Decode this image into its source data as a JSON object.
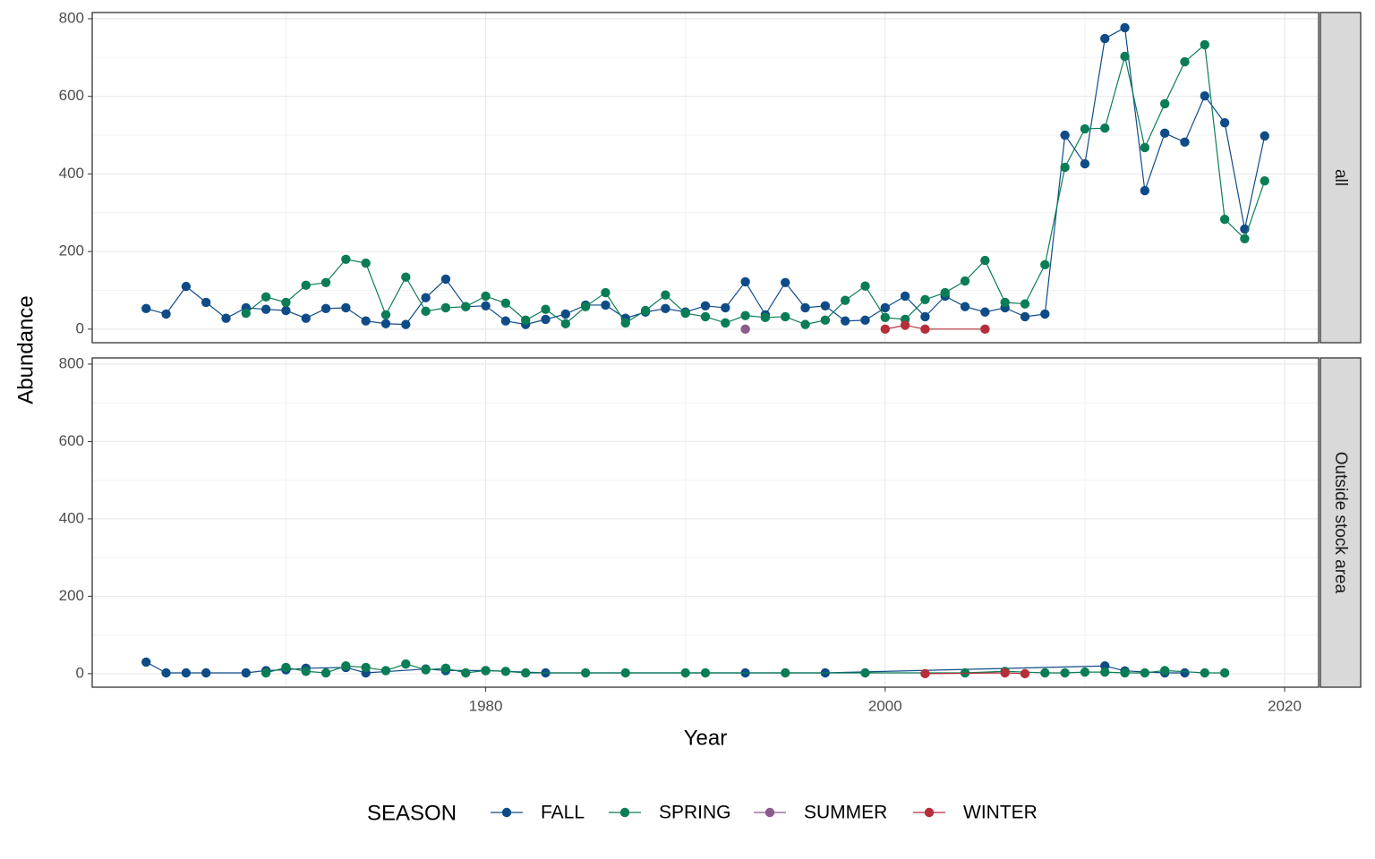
{
  "x_label": "Year",
  "y_label": "Abundance",
  "legend": {
    "title": "SEASON",
    "position": "bottom"
  },
  "chart_data": [
    {
      "type": "line",
      "facet": "all",
      "xlim": [
        1960.3,
        2021.7
      ],
      "ylim": [
        -35,
        816
      ],
      "xticks": [
        1980,
        2000,
        2020
      ],
      "yticks": [
        0,
        200,
        400,
        600,
        800
      ],
      "grid": true,
      "series": [
        {
          "name": "FALL",
          "color": "#0f4c87",
          "x": [
            1963,
            1964,
            1965,
            1966,
            1967,
            1968,
            1969,
            1970,
            1971,
            1972,
            1973,
            1974,
            1975,
            1976,
            1977,
            1978,
            1979,
            1980,
            1981,
            1982,
            1983,
            1984,
            1985,
            1986,
            1987,
            1988,
            1989,
            1990,
            1991,
            1992,
            1993,
            1994,
            1995,
            1996,
            1997,
            1998,
            1999,
            2000,
            2001,
            2002,
            2003,
            2004,
            2005,
            2006,
            2007,
            2008,
            2009,
            2010,
            2011,
            2012,
            2013,
            2014,
            2015,
            2016,
            2017,
            2018,
            2019
          ],
          "values": [
            53,
            39,
            110,
            69,
            28,
            55,
            51,
            48,
            28,
            53,
            55,
            21,
            14,
            12,
            81,
            129,
            58,
            60,
            21,
            12,
            25,
            39,
            62,
            62,
            28,
            44,
            53,
            44,
            60,
            55,
            122,
            37,
            120,
            55,
            60,
            21,
            23,
            55,
            85,
            32,
            85,
            58,
            44,
            55,
            32,
            39,
            500,
            426,
            749,
            777,
            357,
            505,
            482,
            601,
            532,
            258,
            498
          ]
        },
        {
          "name": "SPRING",
          "color": "#0b7d55",
          "x": [
            1968,
            1969,
            1970,
            1971,
            1972,
            1973,
            1974,
            1975,
            1976,
            1977,
            1978,
            1979,
            1980,
            1981,
            1982,
            1983,
            1984,
            1985,
            1986,
            1987,
            1988,
            1989,
            1990,
            1991,
            1992,
            1993,
            1994,
            1995,
            1996,
            1997,
            1998,
            1999,
            2000,
            2001,
            2002,
            2003,
            2004,
            2005,
            2006,
            2007,
            2008,
            2009,
            2010,
            2011,
            2012,
            2013,
            2014,
            2015,
            2016,
            2017,
            2018,
            2019
          ],
          "values": [
            41,
            83,
            69,
            113,
            120,
            180,
            170,
            37,
            134,
            46,
            55,
            58,
            85,
            67,
            23,
            51,
            14,
            58,
            94,
            16,
            48,
            88,
            41,
            32,
            16,
            35,
            30,
            32,
            12,
            23,
            74,
            111,
            30,
            25,
            76,
            94,
            124,
            177,
            69,
            65,
            166,
            417,
            516,
            518,
            703,
            468,
            581,
            689,
            733,
            283,
            233,
            382
          ]
        },
        {
          "name": "SUMMER",
          "color": "#8b5b8c",
          "x": [
            1993
          ],
          "values": [
            0
          ]
        },
        {
          "name": "WINTER",
          "color": "#b52f3a",
          "x": [
            2000,
            2001,
            2002,
            2005
          ],
          "values": [
            0,
            10,
            0,
            0
          ]
        }
      ]
    },
    {
      "type": "line",
      "facet": "Outside stock area",
      "xlim": [
        1960.3,
        2021.7
      ],
      "ylim": [
        -35,
        816
      ],
      "xticks": [
        1980,
        2000,
        2020
      ],
      "yticks": [
        0,
        200,
        400,
        600,
        800
      ],
      "grid": true,
      "series": [
        {
          "name": "FALL",
          "color": "#0f4c87",
          "x": [
            1963,
            1964,
            1965,
            1966,
            1968,
            1969,
            1970,
            1971,
            1973,
            1974,
            1977,
            1978,
            1980,
            1983,
            1993,
            1997,
            2011,
            2012,
            2014,
            2015
          ],
          "values": [
            30,
            2,
            2,
            2,
            2,
            8,
            10,
            14,
            16,
            2,
            12,
            8,
            8,
            2,
            2,
            2,
            20,
            7,
            2,
            2
          ]
        },
        {
          "name": "SPRING",
          "color": "#0b7d55",
          "x": [
            1969,
            1970,
            1971,
            1972,
            1973,
            1974,
            1975,
            1976,
            1977,
            1978,
            1979,
            1980,
            1981,
            1982,
            1985,
            1987,
            1990,
            1991,
            1995,
            1999,
            2004,
            2006,
            2008,
            2009,
            2010,
            2011,
            2012,
            2013,
            2014,
            2016,
            2017
          ],
          "values": [
            2,
            16,
            6,
            2,
            20,
            16,
            8,
            25,
            10,
            14,
            2,
            8,
            6,
            2,
            2,
            2,
            2,
            2,
            2,
            2,
            2,
            6,
            2,
            2,
            4,
            4,
            2,
            2,
            8,
            2,
            2
          ]
        },
        {
          "name": "WINTER",
          "color": "#b52f3a",
          "x": [
            2002,
            2006,
            2007
          ],
          "values": [
            0,
            2,
            0
          ]
        }
      ]
    }
  ]
}
